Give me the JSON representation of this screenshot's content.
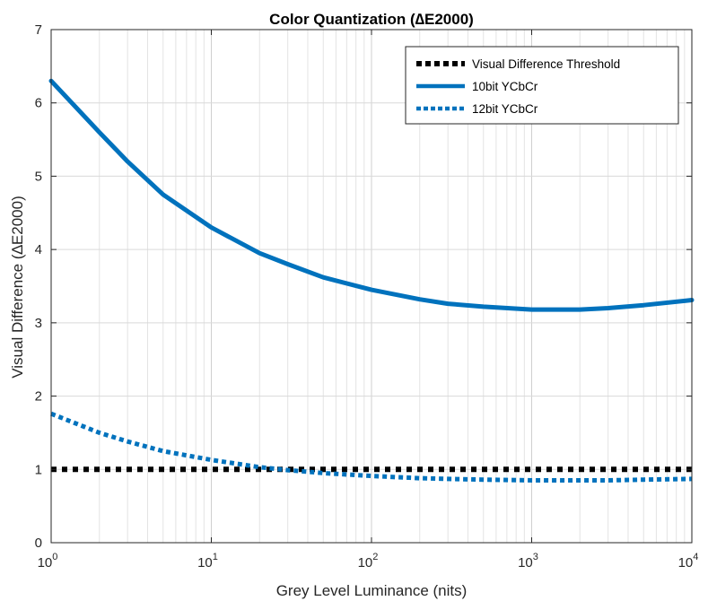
{
  "chart_data": {
    "type": "line",
    "title": "Color Quantization (∆E2000)",
    "xlabel": "Grey Level Luminance (nits)",
    "ylabel": "Visual Difference (∆E2000)",
    "xscale": "log",
    "xlim": [
      1,
      10000
    ],
    "ylim": [
      0,
      7
    ],
    "x_ticks": [
      {
        "base": "10",
        "exp": "0"
      },
      {
        "base": "10",
        "exp": "1"
      },
      {
        "base": "10",
        "exp": "2"
      },
      {
        "base": "10",
        "exp": "3"
      },
      {
        "base": "10",
        "exp": "4"
      }
    ],
    "y_ticks": [
      "0",
      "1",
      "2",
      "3",
      "4",
      "5",
      "6",
      "7"
    ],
    "grid": true,
    "legend_position": "top-right",
    "series": [
      {
        "name": "Visual Difference Threshold",
        "style": "dotted",
        "color": "#000000",
        "x": [
          1,
          10000
        ],
        "y": [
          1.0,
          1.0
        ]
      },
      {
        "name": "10bit YCbCr",
        "style": "solid",
        "color": "#0072BD",
        "x": [
          1,
          2,
          3,
          5,
          10,
          20,
          30,
          50,
          100,
          200,
          300,
          500,
          1000,
          2000,
          3000,
          5000,
          10000
        ],
        "y": [
          6.3,
          5.6,
          5.2,
          4.75,
          4.3,
          3.95,
          3.8,
          3.62,
          3.45,
          3.32,
          3.26,
          3.22,
          3.18,
          3.18,
          3.2,
          3.24,
          3.31
        ]
      },
      {
        "name": "12bit YCbCr",
        "style": "dotted",
        "color": "#0072BD",
        "x": [
          1,
          2,
          3,
          5,
          10,
          20,
          30,
          50,
          100,
          200,
          300,
          500,
          1000,
          2000,
          3000,
          5000,
          10000
        ],
        "y": [
          1.76,
          1.5,
          1.38,
          1.25,
          1.13,
          1.03,
          0.99,
          0.95,
          0.91,
          0.88,
          0.87,
          0.86,
          0.85,
          0.85,
          0.85,
          0.86,
          0.87
        ]
      }
    ]
  }
}
